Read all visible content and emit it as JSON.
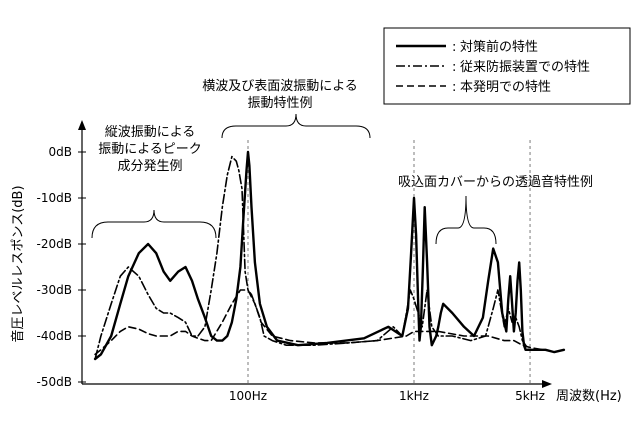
{
  "chart_data": {
    "type": "line",
    "xlabel": "周波数(Hz)",
    "ylabel": "音圧レベルレスポンス(dB)",
    "y_ticks": [
      "0dB",
      "-10dB",
      "-20dB",
      "-30dB",
      "-40dB",
      "-50dB"
    ],
    "y_tick_values": [
      0,
      -10,
      -20,
      -30,
      -40,
      -50
    ],
    "x_ticks": [
      "100Hz",
      "1kHz",
      "5kHz"
    ],
    "x_tick_values": [
      100,
      1000,
      5000
    ],
    "xscale": "log",
    "xlim": [
      10,
      10000
    ],
    "ylim": [
      -50,
      3
    ],
    "legend_position": "top-right",
    "series": [
      {
        "name": "対策前の特性",
        "style": "solid",
        "x": [
          12,
          13,
          15,
          17,
          19,
          22,
          25,
          28,
          31,
          34,
          38,
          42,
          46,
          50,
          55,
          60,
          65,
          70,
          75,
          80,
          85,
          90,
          94,
          98,
          100,
          102,
          105,
          110,
          118,
          130,
          150,
          200,
          300,
          500,
          700,
          850,
          920,
          960,
          1000,
          1030,
          1060,
          1080,
          1100,
          1130,
          1160,
          1200,
          1240,
          1280,
          1320,
          1360,
          1400,
          1450,
          1500,
          1700,
          2000,
          2300,
          2600,
          2800,
          3000,
          3200,
          3400,
          3600,
          3700,
          3800,
          3900,
          4000,
          4100,
          4200,
          4300,
          4400,
          4500,
          4600,
          4700,
          4800,
          4900,
          5000,
          5100,
          5300,
          5500,
          5800,
          6200,
          7000,
          8000
        ],
        "y": [
          -45,
          -44,
          -40,
          -33,
          -27,
          -22,
          -20,
          -22,
          -26,
          -28,
          -26,
          -25,
          -28,
          -32,
          -36,
          -40,
          -41,
          -41,
          -40,
          -37,
          -32,
          -25,
          -14,
          -4,
          0,
          -3,
          -12,
          -24,
          -33,
          -38,
          -41,
          -42,
          -41.5,
          -40.5,
          -38,
          -40,
          -34,
          -22,
          -10,
          -18,
          -33,
          -41,
          -38,
          -26,
          -12,
          -24,
          -38,
          -42,
          -41,
          -40,
          -38,
          -35,
          -33,
          -35,
          -38,
          -40,
          -36,
          -28,
          -21,
          -24,
          -35,
          -39,
          -32,
          -27,
          -33,
          -39,
          -35,
          -28,
          -24,
          -30,
          -39,
          -42,
          -43,
          -43,
          -43,
          -43,
          -43,
          -43,
          -43,
          -43,
          -43,
          -43.5,
          -43
        ]
      },
      {
        "name": "従来防振装置での特性",
        "style": "dash-dot",
        "x": [
          12,
          13,
          15,
          17,
          19,
          22,
          25,
          28,
          31,
          34,
          38,
          42,
          46,
          50,
          55,
          60,
          65,
          70,
          75,
          80,
          85,
          88,
          92,
          96,
          100,
          105,
          110,
          118,
          125,
          140,
          170,
          250,
          400,
          600,
          750,
          850,
          900,
          950,
          1000,
          1060,
          1120,
          1200,
          1280,
          1400,
          1700,
          2200,
          2700,
          3000,
          3200,
          3500,
          3700,
          3900,
          4100,
          4300,
          4500,
          4700,
          4900,
          5100,
          5500,
          6000
        ],
        "y": [
          -45,
          -40,
          -33,
          -27,
          -25,
          -27,
          -31,
          -34,
          -35,
          -35,
          -36,
          -37,
          -40,
          -40,
          -38,
          -30,
          -22,
          -12,
          -5,
          -1,
          -2,
          -4,
          -8,
          -26,
          -30,
          -31,
          -33,
          -36,
          -40,
          -41,
          -42,
          -42,
          -41.5,
          -41,
          -38,
          -40,
          -35,
          -30,
          -32,
          -35,
          -38,
          -30,
          -38,
          -40,
          -40,
          -41,
          -40,
          -34,
          -30,
          -38,
          -34,
          -37,
          -36,
          -38,
          -41,
          -42,
          -43,
          -43,
          -43,
          -43
        ]
      },
      {
        "name": "本発明での特性",
        "style": "dashed",
        "x": [
          12,
          13,
          15,
          17,
          19,
          22,
          25,
          28,
          31,
          34,
          38,
          42,
          46,
          50,
          55,
          60,
          70,
          80,
          90,
          100,
          110,
          120,
          140,
          180,
          250,
          400,
          600,
          900,
          1000,
          1100,
          1400,
          2000,
          2800,
          3500,
          4000,
          4500,
          5000,
          6000
        ],
        "y": [
          -44,
          -43,
          -41,
          -39,
          -38,
          -38.5,
          -39.5,
          -40,
          -40,
          -40,
          -39,
          -39,
          -40,
          -40.5,
          -41,
          -41,
          -37,
          -33,
          -30,
          -30,
          -33,
          -37,
          -40,
          -41,
          -41.5,
          -41.5,
          -41,
          -40,
          -39,
          -39,
          -39,
          -40,
          -40,
          -41,
          -41,
          -42,
          -42.5,
          -43
        ]
      }
    ],
    "annotations": [
      {
        "lines": [
          "縦波振動による",
          "振動によるピーク",
          "成分発生例"
        ]
      },
      {
        "lines": [
          "横波及び表面波振動による",
          "振動特性例"
        ]
      },
      {
        "lines": [
          "吸込面カバーからの透過音特性例"
        ]
      }
    ]
  }
}
